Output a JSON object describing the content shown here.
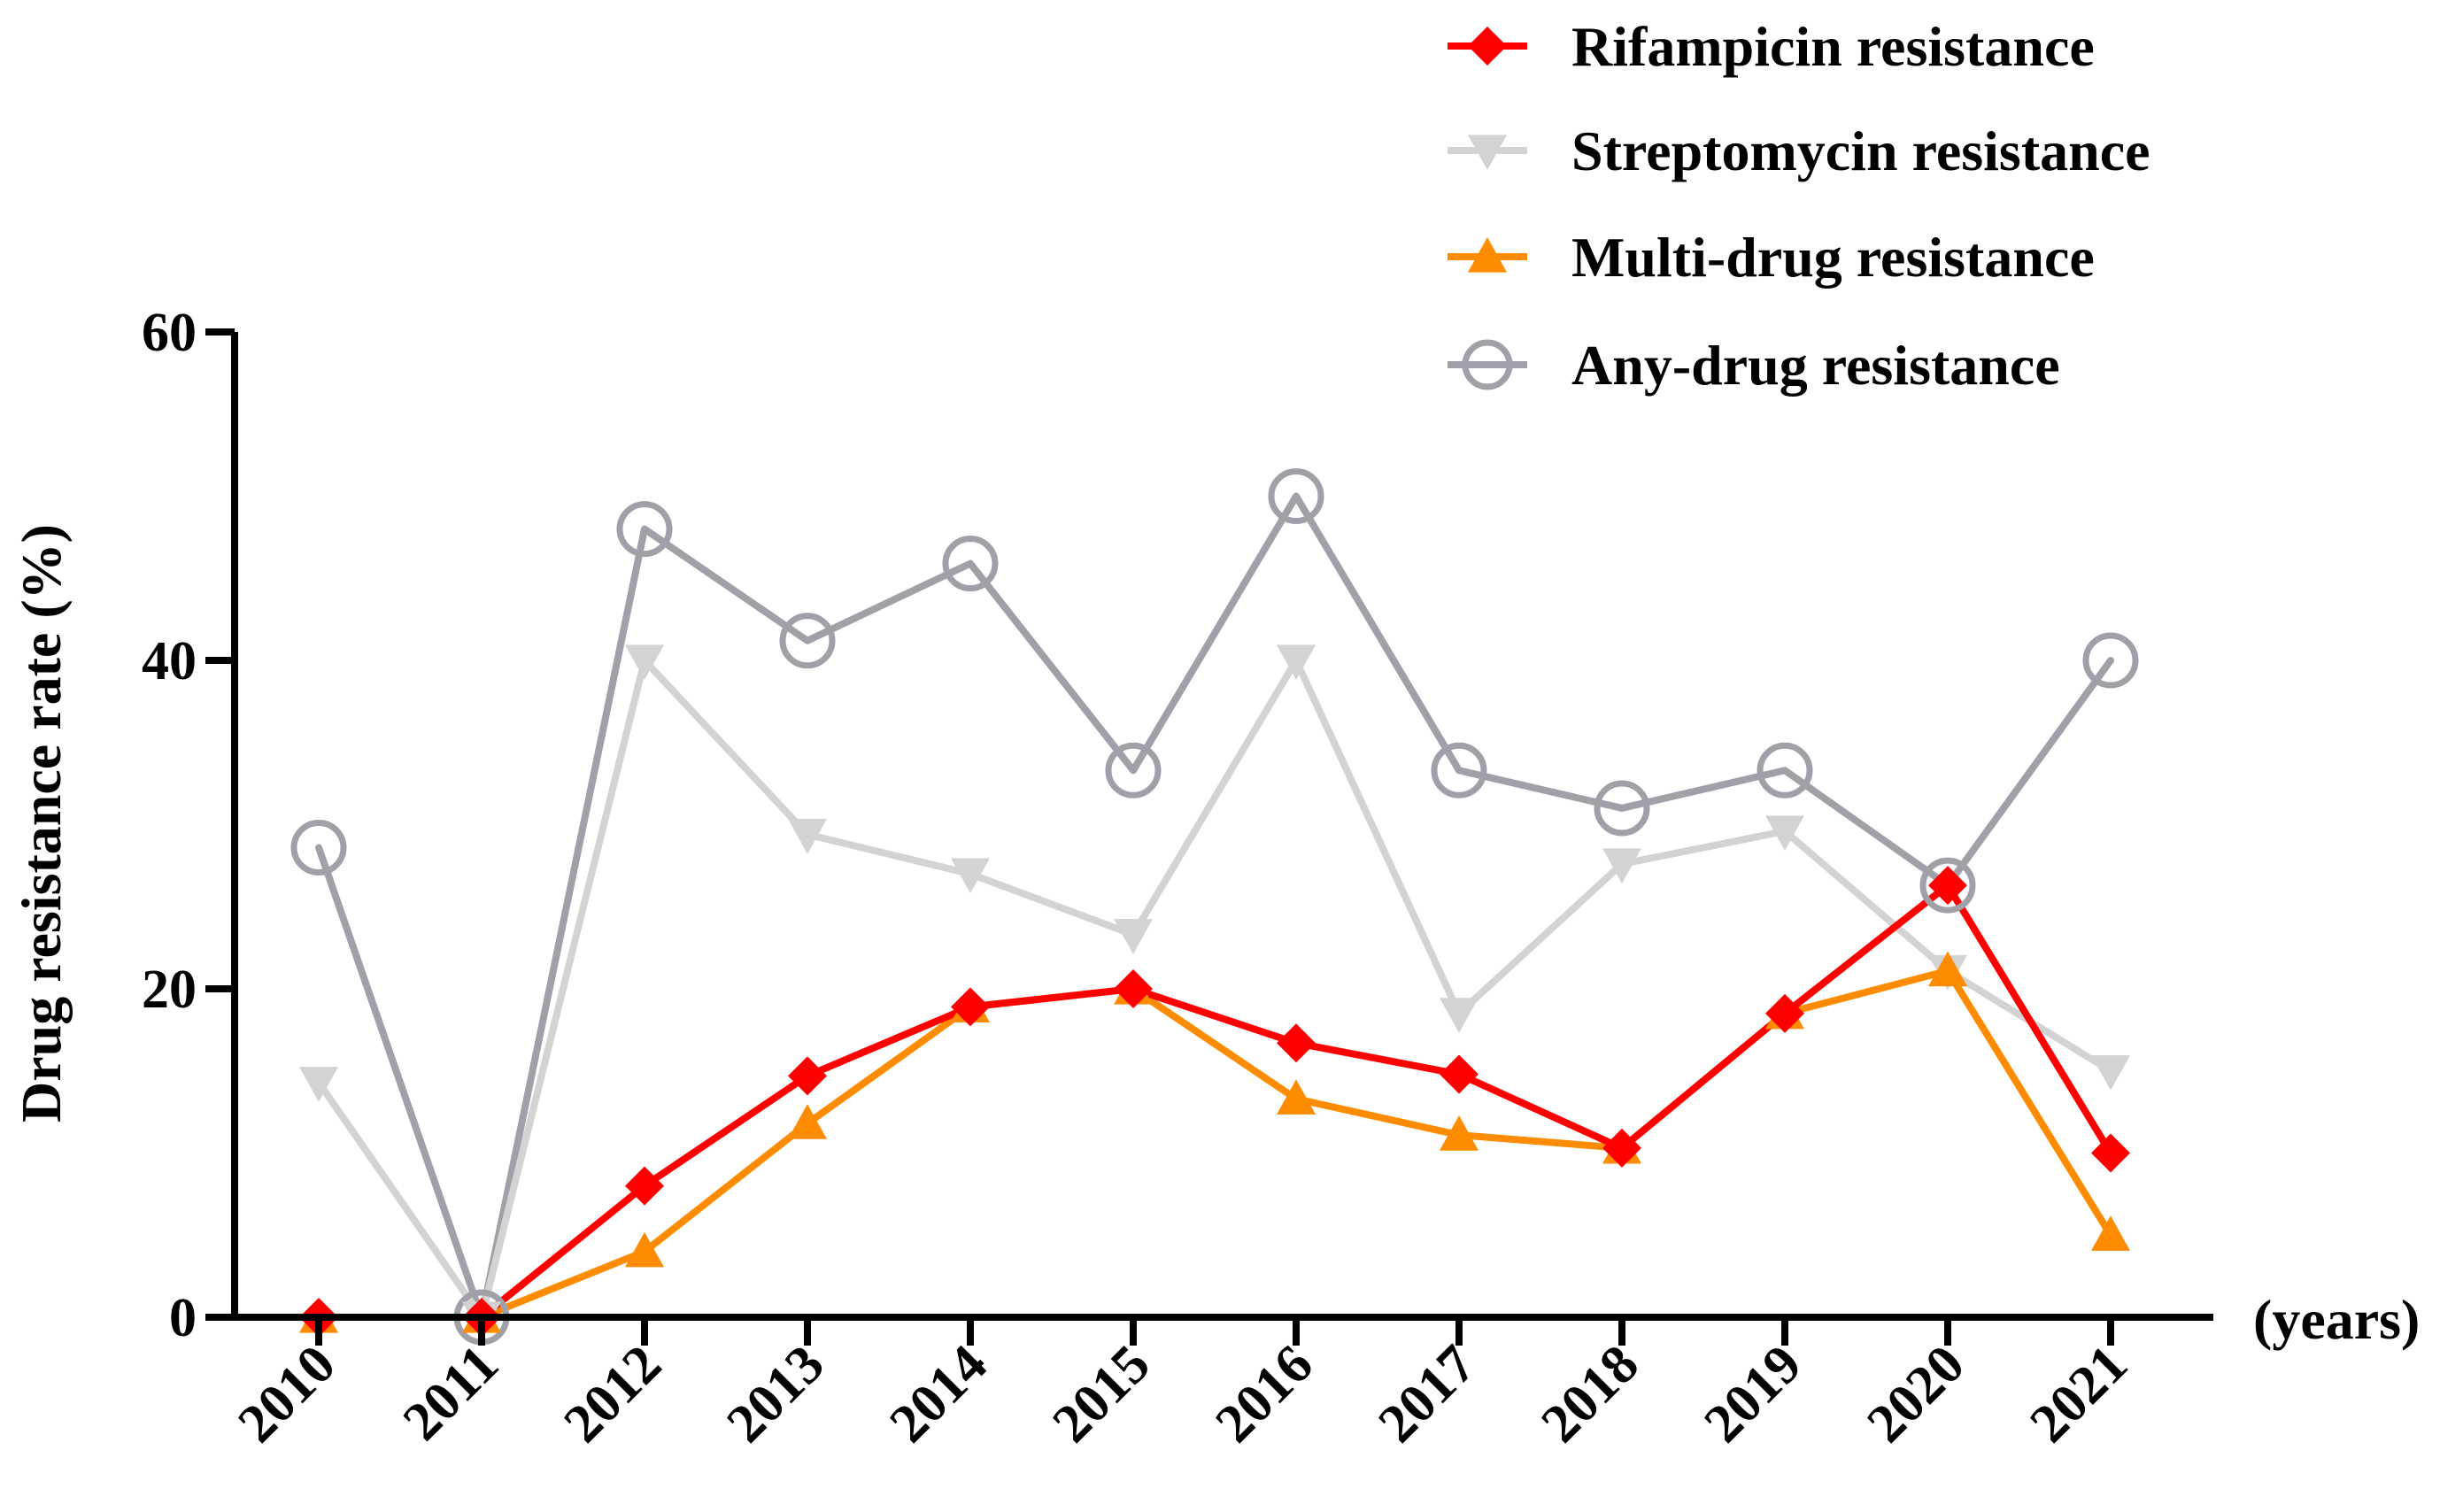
{
  "chart_data": {
    "type": "line",
    "title": "",
    "xlabel": "(years)",
    "ylabel": "Drug resistance rate (%)",
    "ylim": [
      0,
      60
    ],
    "yticks": [
      0,
      20,
      40,
      60
    ],
    "grid": false,
    "legend_position": "top-right",
    "categories": [
      "2010",
      "2011",
      "2012",
      "2013",
      "2014",
      "2015",
      "2016",
      "2017",
      "2018",
      "2019",
      "2020",
      "2021"
    ],
    "series": [
      {
        "name": "Rifampicin resistance",
        "color": "#FF0000",
        "marker": "diamond",
        "values": [
          0,
          0,
          8.0,
          14.7,
          18.9,
          20.0,
          16.7,
          14.8,
          10.3,
          18.5,
          26.3,
          10.0
        ]
      },
      {
        "name": "Streptomycin resistance",
        "color": "#D3D3D3",
        "marker": "triangle-down",
        "values": [
          14.3,
          0,
          40.0,
          29.4,
          27.0,
          23.3,
          40.0,
          18.5,
          27.6,
          29.6,
          21.1,
          15.0
        ]
      },
      {
        "name": "Multi-drug resistance",
        "color": "#FF8C00",
        "marker": "triangle-up",
        "values": [
          0,
          0,
          4.0,
          11.8,
          18.9,
          20.0,
          13.3,
          11.1,
          10.3,
          18.5,
          21.1,
          5.0
        ]
      },
      {
        "name": "Any-drug resistance",
        "color": "#A0A0A8",
        "marker": "open-circle",
        "values": [
          28.6,
          0,
          48.0,
          41.2,
          45.9,
          33.3,
          50.0,
          33.3,
          31.0,
          33.3,
          26.3,
          40.0
        ]
      }
    ]
  }
}
